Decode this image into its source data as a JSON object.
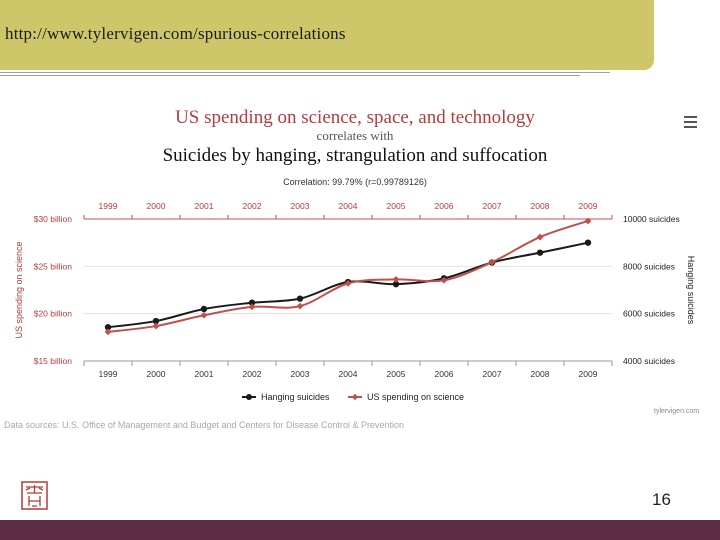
{
  "slide": {
    "url": "http://www.tylervigen.com/spurious-correlations",
    "page_number": "16",
    "data_sources": "Data sources: U.S. Office of Management and Budget and Centers for Disease Control & Prevention",
    "credit": "tylervigen.com",
    "colors": {
      "header_bg": "#cdc76a",
      "footer_bg": "#5b2c44"
    }
  },
  "chart_data": {
    "type": "line",
    "title": "US spending on science, space, and technology",
    "connector": "correlates with",
    "subtitle": "Suicides by hanging, strangulation and suffocation",
    "correlation": "Correlation: 99.79% (r=0.99789126)",
    "x": [
      1999,
      2000,
      2001,
      2002,
      2003,
      2004,
      2005,
      2006,
      2007,
      2008,
      2009
    ],
    "categories": [
      "1999",
      "2000",
      "2001",
      "2002",
      "2003",
      "2004",
      "2005",
      "2006",
      "2007",
      "2008",
      "2009"
    ],
    "left_axis": {
      "label": "US spending on science",
      "range": [
        15,
        30
      ],
      "ticks": [
        15,
        20,
        25,
        30
      ],
      "tick_labels": [
        "$15 billion",
        "$20 billion",
        "$25 billion",
        "$30 billion"
      ],
      "color": "#b43c3c"
    },
    "right_axis": {
      "label": "Hanging suicides",
      "range": [
        4000,
        10000
      ],
      "ticks": [
        4000,
        6000,
        8000,
        10000
      ],
      "tick_labels": [
        "4000 suicides",
        "6000 suicides",
        "8000 suicides",
        "10000 suicides"
      ],
      "color": "#222222"
    },
    "series": [
      {
        "name": "Hanging suicides",
        "axis": "right",
        "color": "#1a1a1a",
        "marker": "circle",
        "values": [
          5427,
          5688,
          6198,
          6462,
          6635,
          7336,
          7248,
          7491,
          8161,
          8578,
          9000
        ]
      },
      {
        "name": "US spending on science",
        "axis": "left",
        "color": "#c0504d",
        "marker": "diamond",
        "values": [
          18.08,
          18.69,
          19.83,
          20.72,
          20.8,
          23.2,
          23.62,
          23.53,
          25.44,
          28.09,
          29.79
        ]
      }
    ],
    "legend": [
      "Hanging suicides",
      "US spending on science"
    ],
    "legend_position": "bottom",
    "grid": true
  }
}
